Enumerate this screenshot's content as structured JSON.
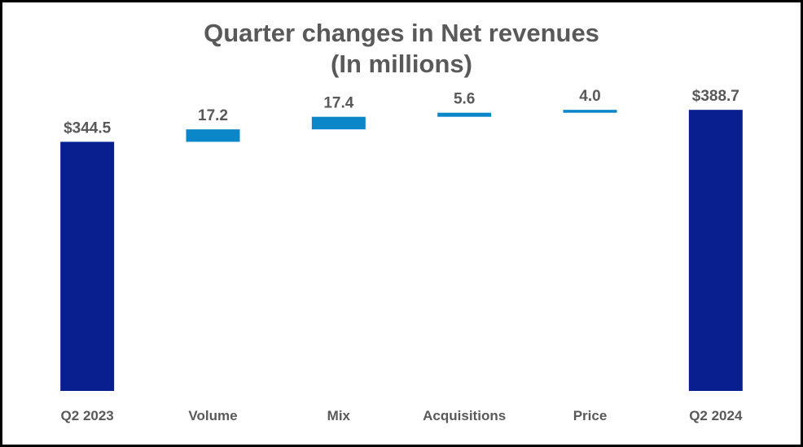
{
  "chart_data": {
    "type": "waterfall",
    "title": [
      "Quarter changes in Net revenues",
      "(In millions)"
    ],
    "categories": [
      "Q2 2023",
      "Volume",
      "Mix",
      "Acquisitions",
      "Price",
      "Q2 2024"
    ],
    "steps": [
      {
        "category": "Q2 2023",
        "kind": "total",
        "value": 344.5,
        "label": "$344.5"
      },
      {
        "category": "Volume",
        "kind": "delta",
        "value": 17.2,
        "label": "17.2"
      },
      {
        "category": "Mix",
        "kind": "delta",
        "value": 17.4,
        "label": "17.4"
      },
      {
        "category": "Acquisitions",
        "kind": "delta",
        "value": 5.6,
        "label": "5.6"
      },
      {
        "category": "Price",
        "kind": "delta",
        "value": 4.0,
        "label": "4.0"
      },
      {
        "category": "Q2 2024",
        "kind": "total",
        "value": 388.7,
        "label": "$388.7"
      }
    ],
    "xlabel": "",
    "ylabel": "",
    "colors": {
      "total": "#0a1f8f",
      "delta": "#0b86c9",
      "text": "#595959"
    }
  }
}
